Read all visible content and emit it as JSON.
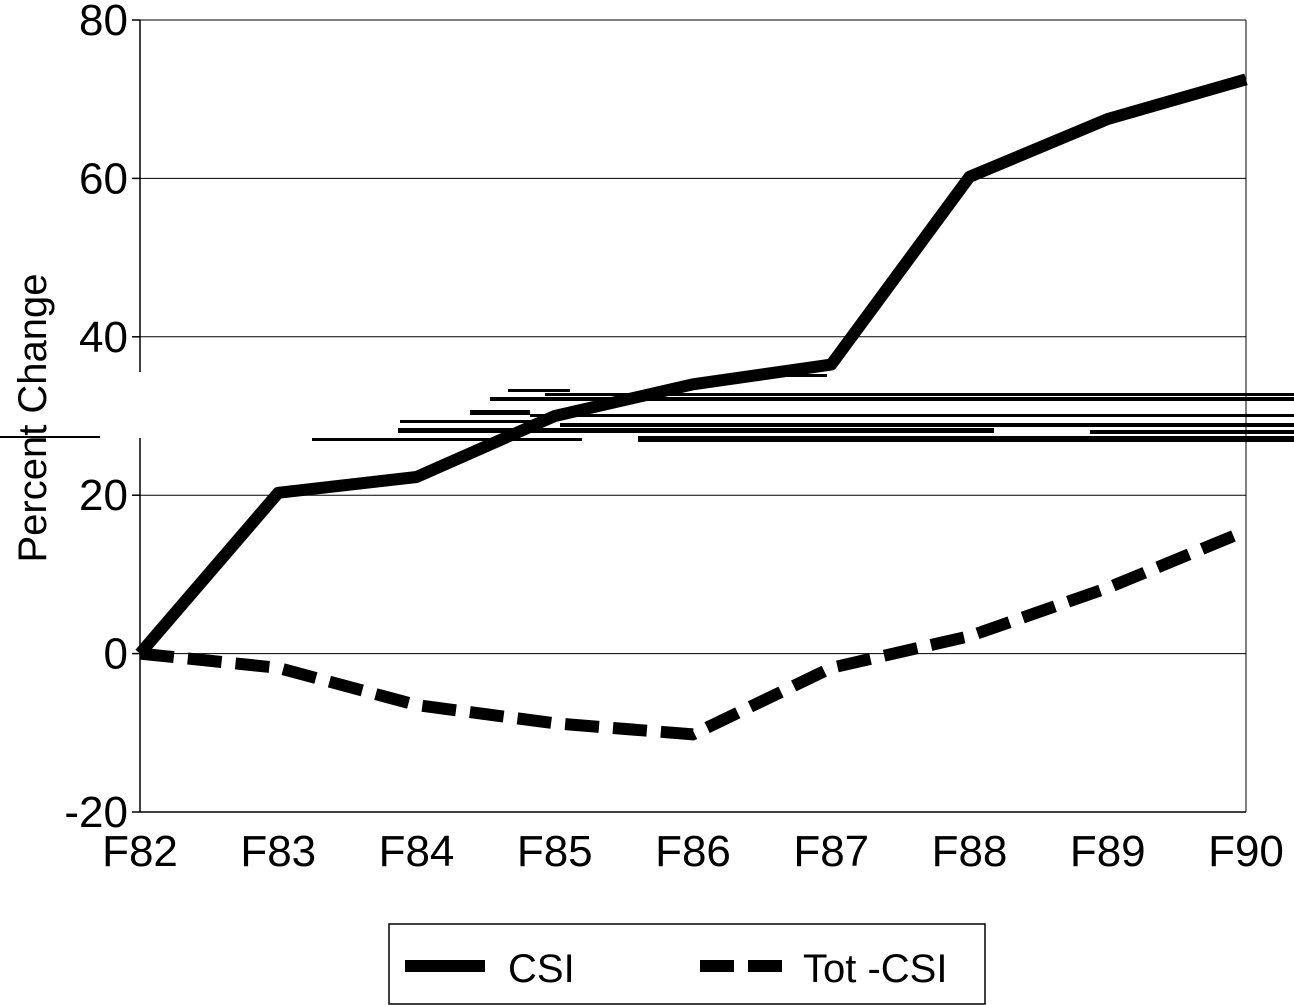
{
  "chart_data": {
    "type": "line",
    "title": "",
    "xlabel": "",
    "ylabel": "Percent Change",
    "categories": [
      "F82",
      "F83",
      "F84",
      "F85",
      "F86",
      "F87",
      "F88",
      "F89",
      "F90"
    ],
    "ylim": [
      -20,
      80
    ],
    "yticks": [
      -20,
      0,
      20,
      40,
      60,
      80
    ],
    "grid": "horizontal",
    "legend_position": "bottom",
    "series": [
      {
        "name": "CSI",
        "style": "solid",
        "color": "#000000",
        "values": [
          0,
          20.3,
          22.3,
          30,
          34,
          36.5,
          60.2,
          67.5,
          72.5
        ]
      },
      {
        "name": "Tot -CSI",
        "style": "dashed",
        "color": "#000000",
        "values": [
          0,
          -1.8,
          -6.5,
          -8.8,
          -10.2,
          -1.8,
          2.2,
          8.3,
          15.5
        ]
      }
    ]
  }
}
